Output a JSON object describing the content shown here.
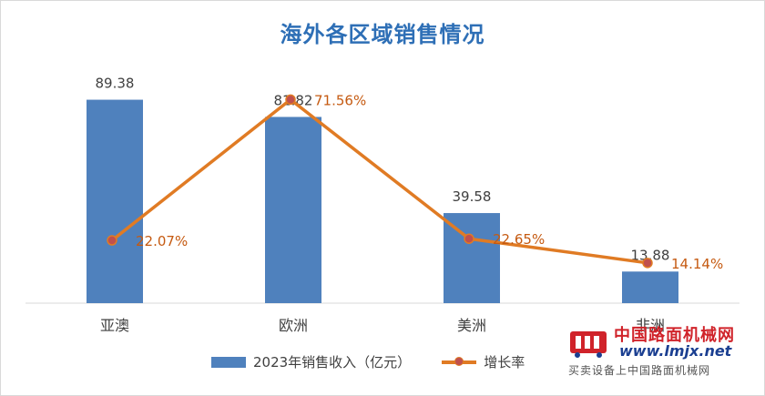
{
  "chart_data": {
    "type": "bar",
    "title": "海外各区域销售情况",
    "categories": [
      "亚澳",
      "欧洲",
      "美洲",
      "非洲"
    ],
    "series": [
      {
        "name": "2023年销售收入（亿元）",
        "type": "bar",
        "values": [
          89.38,
          81.82,
          39.58,
          13.88
        ],
        "labels": [
          "89.38",
          "81.82",
          "39.58",
          "13.88"
        ],
        "color": "#4f81bd"
      },
      {
        "name": "增长率",
        "type": "line",
        "values": [
          22.07,
          71.56,
          22.65,
          14.14
        ],
        "labels": [
          "22.07%",
          "71.56%",
          "22.65%",
          "14.14%"
        ],
        "color": "#e07b24",
        "marker_color": "#c0504d"
      }
    ],
    "ylim": [
      0,
      100
    ],
    "y2lim": [
      0,
      80
    ],
    "grid": false,
    "legend_position": "bottom"
  },
  "watermark": {
    "name_cn": "中国路面机械网",
    "url": "www.lmjx.net",
    "tagline": "买卖设备上中国路面机械网"
  }
}
